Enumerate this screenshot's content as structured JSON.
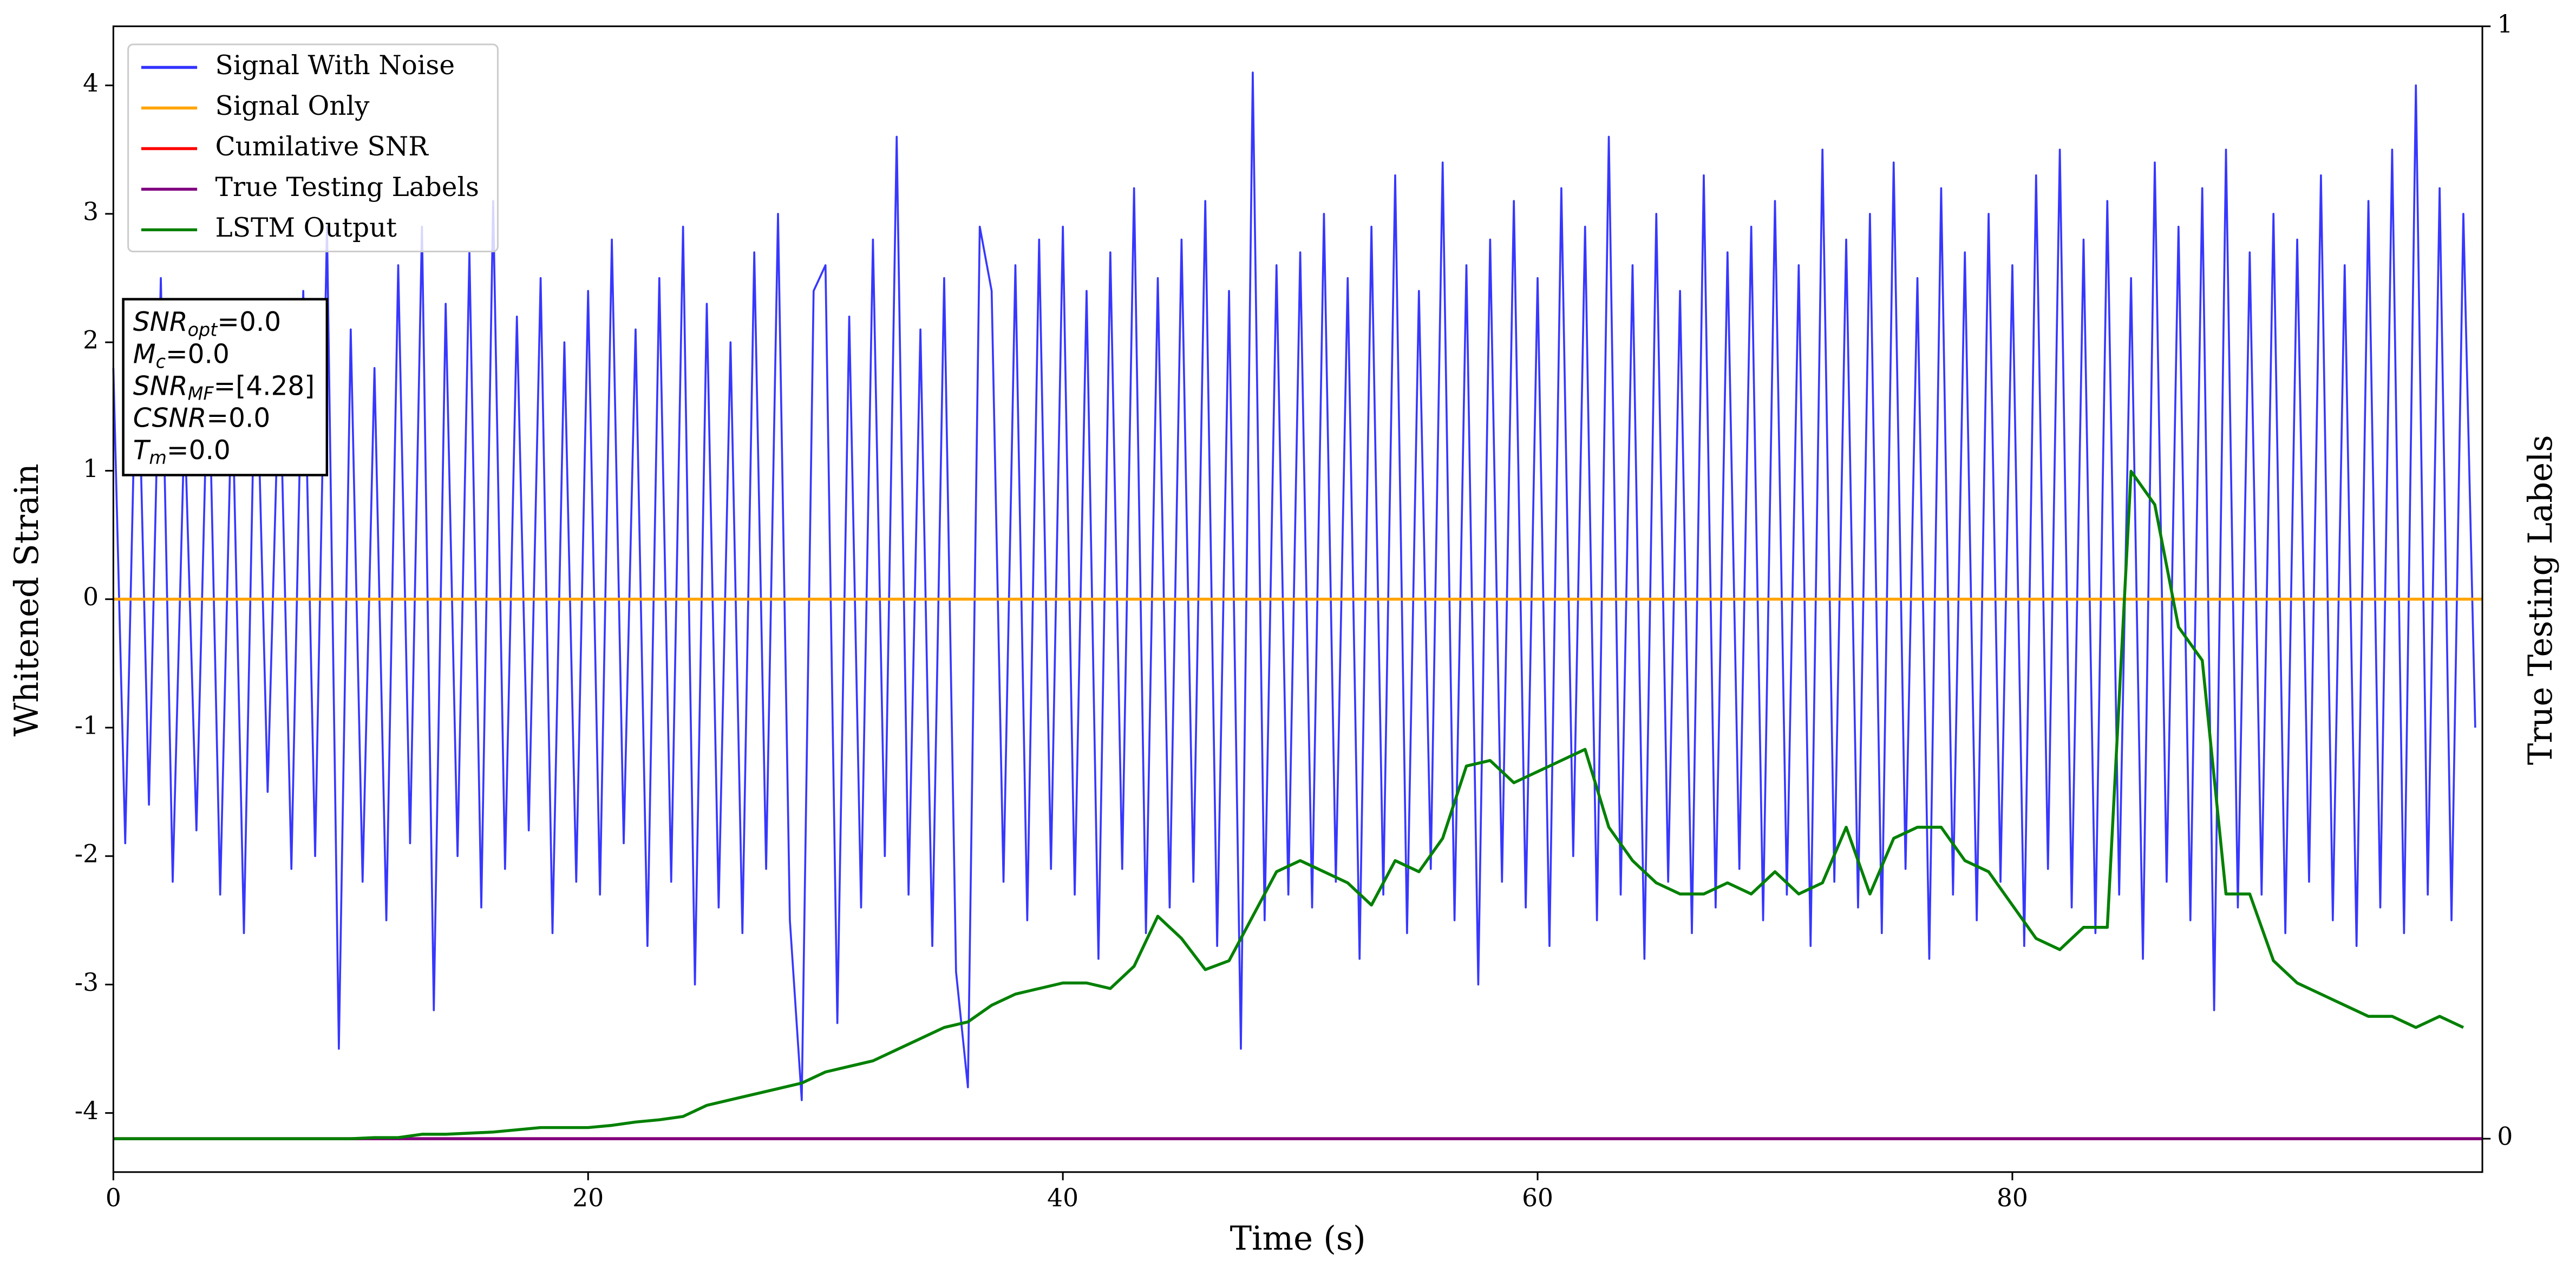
{
  "chart_data": {
    "type": "line",
    "xlabel": "Time (s)",
    "ylabel": "Whitened Strain",
    "y2label": "True Testing Labels",
    "xlim": [
      0,
      99.8
    ],
    "xticks": [
      0,
      20,
      40,
      60,
      80
    ],
    "ylim": [
      -4.46,
      4.46
    ],
    "yticks": [
      -4,
      -3,
      -2,
      -1,
      0,
      1,
      2,
      3,
      4
    ],
    "y2lim": [
      -0.03,
      1.0
    ],
    "y2ticks": [
      0,
      1
    ],
    "legend": "upper left",
    "grid": false,
    "annotation": [
      {
        "main": "SNR",
        "sub": "opt",
        "rest": "=0.0"
      },
      {
        "main": "M",
        "sub": "c",
        "rest": "=0.0"
      },
      {
        "main": "SNR",
        "sub": "MF",
        "rest": "=[4.28]"
      },
      {
        "main": "CSNR",
        "sub": null,
        "rest": "=0.0"
      },
      {
        "main": "T",
        "sub": "m",
        "rest": "=0.0"
      }
    ],
    "series": [
      {
        "name": "Signal With Noise",
        "color": "#3333ff",
        "axis": "y",
        "x": [
          0,
          0.5,
          1,
          1.5,
          2,
          2.5,
          3,
          3.5,
          4,
          4.5,
          5,
          5.5,
          6,
          6.5,
          7,
          7.5,
          8,
          8.5,
          9,
          9.5,
          10,
          10.5,
          11,
          11.5,
          12,
          12.5,
          13,
          13.5,
          14,
          14.5,
          15,
          15.5,
          16,
          16.5,
          17,
          17.5,
          18,
          18.5,
          19,
          19.5,
          20,
          20.5,
          21,
          21.5,
          22,
          22.5,
          23,
          23.5,
          24,
          24.5,
          25,
          25.5,
          26,
          26.5,
          27,
          27.5,
          28,
          28.5,
          29,
          29.5,
          30,
          30.5,
          31,
          31.5,
          32,
          32.5,
          33,
          33.5,
          34,
          34.5,
          35,
          35.5,
          36,
          36.5,
          37,
          37.5,
          38,
          38.5,
          39,
          39.5,
          40,
          40.5,
          41,
          41.5,
          42,
          42.5,
          43,
          43.5,
          44,
          44.5,
          45,
          45.5,
          46,
          46.5,
          47,
          47.5,
          48,
          48.5,
          49,
          49.5,
          50,
          50.5,
          51,
          51.5,
          52,
          52.5,
          53,
          53.5,
          54,
          54.5,
          55,
          55.5,
          56,
          56.5,
          57,
          57.5,
          58,
          58.5,
          59,
          59.5,
          60,
          60.5,
          61,
          61.5,
          62,
          62.5,
          63,
          63.5,
          64,
          64.5,
          65,
          65.5,
          66,
          66.5,
          67,
          67.5,
          68,
          68.5,
          69,
          69.5,
          70,
          70.5,
          71,
          71.5,
          72,
          72.5,
          73,
          73.5,
          74,
          74.5,
          75,
          75.5,
          76,
          76.5,
          77,
          77.5,
          78,
          78.5,
          79,
          79.5,
          80,
          80.5,
          81,
          81.5,
          82,
          82.5,
          83,
          83.5,
          84,
          84.5,
          85,
          85.5,
          86,
          86.5,
          87,
          87.5,
          88,
          88.5,
          89,
          89.5,
          90,
          90.5,
          91,
          91.5,
          92,
          92.5,
          93,
          93.5,
          94,
          94.5,
          95,
          95.5,
          96,
          96.5,
          97,
          97.5,
          98,
          98.5,
          99,
          99.5
        ],
        "values": [
          1.8,
          -1.9,
          2.3,
          -1.6,
          2.5,
          -2.2,
          1.4,
          -1.8,
          2.0,
          -2.3,
          1.7,
          -2.6,
          2.2,
          -1.5,
          1.9,
          -2.1,
          2.4,
          -2.0,
          2.9,
          -3.5,
          2.1,
          -2.2,
          1.8,
          -2.5,
          2.6,
          -1.9,
          2.9,
          -3.2,
          2.3,
          -2.0,
          2.7,
          -2.4,
          3.1,
          -2.1,
          2.2,
          -1.8,
          2.5,
          -2.6,
          2.0,
          -2.2,
          2.4,
          -2.3,
          2.8,
          -1.9,
          2.1,
          -2.7,
          2.5,
          -2.2,
          2.9,
          -3.0,
          2.3,
          -2.4,
          2.0,
          -2.6,
          2.7,
          -2.1,
          3.0,
          -2.5,
          -3.9,
          2.4,
          2.6,
          -3.3,
          2.2,
          -2.4,
          2.8,
          -2.0,
          3.6,
          -2.3,
          2.1,
          -2.7,
          2.5,
          -2.9,
          -3.8,
          2.9,
          2.4,
          -2.2,
          2.6,
          -2.5,
          2.8,
          -2.1,
          2.9,
          -2.3,
          2.4,
          -2.8,
          2.7,
          -2.1,
          3.2,
          -2.6,
          2.5,
          -2.4,
          2.8,
          -2.2,
          3.1,
          -2.7,
          2.4,
          -3.5,
          4.1,
          -2.5,
          2.6,
          -2.3,
          2.7,
          -2.4,
          3.0,
          -2.2,
          2.5,
          -2.8,
          2.9,
          -2.3,
          3.3,
          -2.6,
          2.4,
          -2.1,
          3.4,
          -2.5,
          2.6,
          -3.0,
          2.8,
          -2.2,
          3.1,
          -2.4,
          2.5,
          -2.7,
          3.2,
          -2.0,
          2.9,
          -2.5,
          3.6,
          -2.3,
          2.6,
          -2.8,
          3.0,
          -2.2,
          2.4,
          -2.6,
          3.3,
          -2.4,
          2.7,
          -2.1,
          2.9,
          -2.5,
          3.1,
          -2.3,
          2.6,
          -2.7,
          3.5,
          -2.2,
          2.8,
          -2.4,
          3.0,
          -2.6,
          3.4,
          -2.1,
          2.5,
          -2.8,
          3.2,
          -2.3,
          2.7,
          -2.5,
          3.0,
          -2.2,
          2.6,
          -2.7,
          3.3,
          -2.1,
          3.5,
          -2.4,
          2.8,
          -2.6,
          3.1,
          -2.3,
          2.5,
          -2.8,
          3.4,
          -2.2,
          2.9,
          -2.5,
          3.2,
          -3.2,
          3.5,
          -2.4,
          2.7,
          -2.3,
          3.0,
          -2.6,
          2.8,
          -2.2,
          3.3,
          -2.5,
          2.6,
          -2.7,
          3.1,
          -2.4,
          3.5,
          -2.6,
          4.0,
          -2.3,
          3.2,
          -2.5,
          3.0,
          -1.0
        ]
      },
      {
        "name": "Signal Only",
        "color": "#ffa500",
        "axis": "y",
        "x": [
          0,
          99.8
        ],
        "values": [
          0,
          0
        ]
      },
      {
        "name": "Cumilative SNR",
        "color": "#ff0000",
        "axis": "y2",
        "x": [
          0,
          99.8
        ],
        "values": [
          0,
          0
        ]
      },
      {
        "name": "True Testing Labels",
        "color": "#800080",
        "axis": "y2",
        "x": [
          0,
          99.8
        ],
        "values": [
          0,
          0
        ]
      },
      {
        "name": "LSTM Output",
        "color": "#008000",
        "axis": "y2",
        "x": [
          0,
          1,
          2,
          3,
          4,
          5,
          6,
          7,
          8,
          9,
          10,
          11,
          12,
          13,
          14,
          15,
          16,
          17,
          18,
          19,
          20,
          21,
          22,
          23,
          24,
          25,
          26,
          27,
          28,
          29,
          30,
          31,
          32,
          33,
          34,
          35,
          36,
          37,
          38,
          39,
          40,
          41,
          42,
          43,
          44,
          45,
          46,
          47,
          48,
          49,
          50,
          51,
          52,
          53,
          54,
          55,
          56,
          57,
          58,
          59,
          60,
          61,
          62,
          63,
          64,
          65,
          66,
          67,
          68,
          69,
          70,
          71,
          72,
          73,
          74,
          75,
          76,
          77,
          78,
          79,
          80,
          81,
          82,
          83,
          84,
          85,
          86,
          87,
          88,
          89,
          90,
          91,
          92,
          93,
          94,
          95,
          96,
          97,
          98,
          99
        ],
        "values": [
          0,
          0,
          0,
          0,
          0,
          0,
          0,
          0,
          0,
          0,
          0,
          0.001,
          0.001,
          0.004,
          0.004,
          0.005,
          0.006,
          0.008,
          0.01,
          0.01,
          0.01,
          0.012,
          0.015,
          0.017,
          0.02,
          0.03,
          0.035,
          0.04,
          0.045,
          0.05,
          0.06,
          0.065,
          0.07,
          0.08,
          0.09,
          0.1,
          0.105,
          0.12,
          0.13,
          0.135,
          0.14,
          0.14,
          0.135,
          0.155,
          0.2,
          0.18,
          0.152,
          0.16,
          0.2,
          0.24,
          0.25,
          0.24,
          0.23,
          0.21,
          0.25,
          0.24,
          0.27,
          0.335,
          0.34,
          0.32,
          0.33,
          0.34,
          0.35,
          0.28,
          0.25,
          0.23,
          0.22,
          0.22,
          0.23,
          0.22,
          0.24,
          0.22,
          0.23,
          0.28,
          0.22,
          0.27,
          0.28,
          0.28,
          0.25,
          0.24,
          0.21,
          0.18,
          0.17,
          0.19,
          0.19,
          0.6,
          0.57,
          0.46,
          0.43,
          0.22,
          0.22,
          0.16,
          0.14,
          0.13,
          0.12,
          0.11,
          0.11,
          0.1,
          0.11,
          0.1
        ]
      }
    ]
  }
}
